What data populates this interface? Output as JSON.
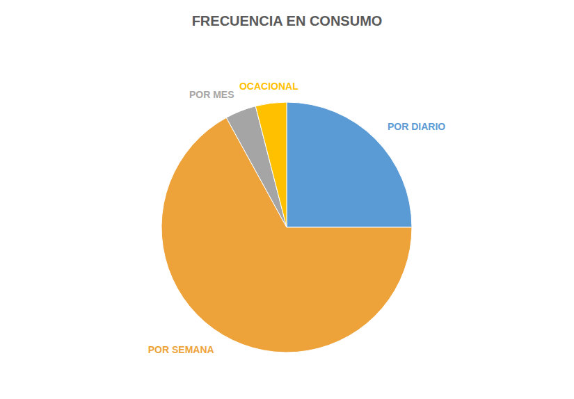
{
  "chart_data": {
    "type": "pie",
    "title": "FRECUENCIA EN CONSUMO",
    "categories": [
      "POR DIARIO",
      "POR SEMANA",
      "POR MES",
      "OCACIONAL"
    ],
    "values": [
      25,
      67,
      4,
      4
    ],
    "colors": [
      "#5b9bd5",
      "#eda33a",
      "#a5a5a5",
      "#ffc000"
    ]
  }
}
